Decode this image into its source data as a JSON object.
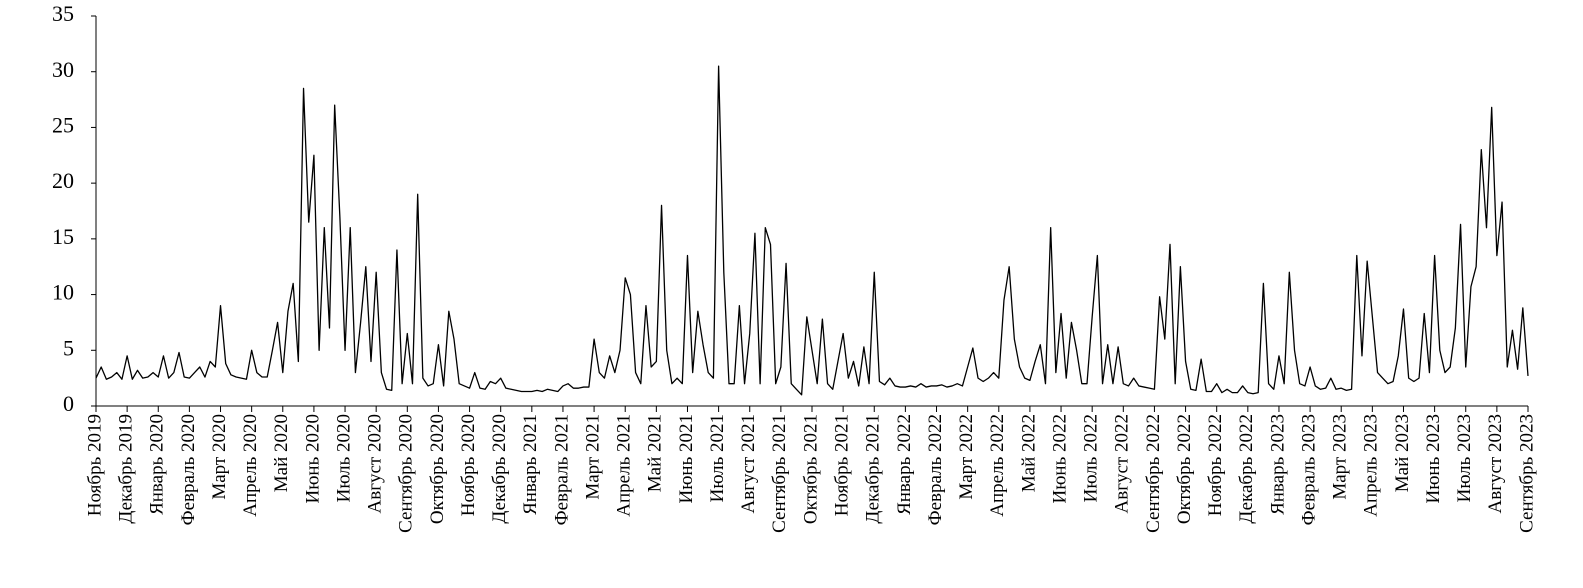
{
  "chart_data": {
    "type": "line",
    "categories": [
      "Ноябрь 2019",
      null,
      null,
      null,
      null,
      null,
      "Декабрь 2019",
      null,
      null,
      null,
      null,
      null,
      "Январь 2020",
      null,
      null,
      null,
      null,
      null,
      "Февраль 2020",
      null,
      null,
      null,
      null,
      null,
      "Март 2020",
      null,
      null,
      null,
      null,
      null,
      "Апрель 2020",
      null,
      null,
      null,
      null,
      null,
      "Май 2020",
      null,
      null,
      null,
      null,
      null,
      "Июнь 2020",
      null,
      null,
      null,
      null,
      null,
      "Июль 2020",
      null,
      null,
      null,
      null,
      null,
      "Август 2020",
      null,
      null,
      null,
      null,
      null,
      "Сентябрь 2020",
      null,
      null,
      null,
      null,
      null,
      "Октябрь 2020",
      null,
      null,
      null,
      null,
      null,
      "Ноябрь 2020",
      null,
      null,
      null,
      null,
      null,
      "Декабрь 2020",
      null,
      null,
      null,
      null,
      null,
      "Январь 2021",
      null,
      null,
      null,
      null,
      null,
      "Февраль 2021",
      null,
      null,
      null,
      null,
      null,
      "Март 2021",
      null,
      null,
      null,
      null,
      null,
      "Апрель 2021",
      null,
      null,
      null,
      null,
      null,
      "Май 2021",
      null,
      null,
      null,
      null,
      null,
      "Июнь 2021",
      null,
      null,
      null,
      null,
      null,
      "Июль 2021",
      null,
      null,
      null,
      null,
      null,
      "Август 2021",
      null,
      null,
      null,
      null,
      null,
      "Сентябрь 2021",
      null,
      null,
      null,
      null,
      null,
      "Октябрь 2021",
      null,
      null,
      null,
      null,
      null,
      "Ноябрь 2021",
      null,
      null,
      null,
      null,
      null,
      "Декабрь 2021",
      null,
      null,
      null,
      null,
      null,
      "Январь 2022",
      null,
      null,
      null,
      null,
      null,
      "Февраль 2022",
      null,
      null,
      null,
      null,
      null,
      "Март 2022",
      null,
      null,
      null,
      null,
      null,
      "Апрель 2022",
      null,
      null,
      null,
      null,
      null,
      "Май 2022",
      null,
      null,
      null,
      null,
      null,
      "Июнь 2022",
      null,
      null,
      null,
      null,
      null,
      "Июль 2022",
      null,
      null,
      null,
      null,
      null,
      "Август 2022",
      null,
      null,
      null,
      null,
      null,
      "Сентябрь 2022",
      null,
      null,
      null,
      null,
      null,
      "Октябрь 2022",
      null,
      null,
      null,
      null,
      null,
      "Ноябрь 2022",
      null,
      null,
      null,
      null,
      null,
      "Декабрь 2022",
      null,
      null,
      null,
      null,
      null,
      "Январь 2023",
      null,
      null,
      null,
      null,
      null,
      "Февраль 2023",
      null,
      null,
      null,
      null,
      null,
      "Март 2023",
      null,
      null,
      null,
      null,
      null,
      "Апрель 2023",
      null,
      null,
      null,
      null,
      null,
      "Май 2023",
      null,
      null,
      null,
      null,
      null,
      "Июнь 2023",
      null,
      null,
      null,
      null,
      null,
      "Июль 2023",
      null,
      null,
      null,
      null,
      null,
      "Август 2023",
      null,
      null,
      null,
      null,
      null,
      "Сентябрь 2023"
    ],
    "values": [
      2.5,
      3.5,
      2.4,
      2.6,
      3.0,
      2.4,
      4.5,
      2.4,
      3.2,
      2.5,
      2.6,
      3.0,
      2.6,
      4.5,
      2.5,
      3.0,
      4.8,
      2.6,
      2.5,
      3.0,
      3.5,
      2.6,
      4.0,
      3.5,
      9.0,
      3.8,
      2.8,
      2.6,
      2.5,
      2.4,
      5.0,
      3.0,
      2.6,
      2.6,
      5.0,
      7.5,
      3.0,
      8.5,
      11,
      4,
      28.5,
      16.5,
      22.5,
      5,
      16,
      7,
      27,
      17,
      5,
      16,
      3,
      7.5,
      12.5,
      4,
      12,
      3,
      1.5,
      1.4,
      14,
      2,
      6.5,
      2,
      19,
      2.5,
      1.8,
      2.0,
      5.5,
      1.8,
      8.5,
      6,
      2,
      1.8,
      1.6,
      3.0,
      1.6,
      1.5,
      2.2,
      2.0,
      2.5,
      1.6,
      1.5,
      1.4,
      1.3,
      1.3,
      1.3,
      1.4,
      1.3,
      1.5,
      1.4,
      1.3,
      1.8,
      2.0,
      1.6,
      1.6,
      1.7,
      1.7,
      6,
      3,
      2.5,
      4.5,
      3,
      5,
      11.5,
      10,
      3,
      2,
      9,
      3.5,
      4,
      18,
      5,
      2,
      2.5,
      2,
      13.5,
      3,
      8.5,
      5.5,
      3,
      2.5,
      30.5,
      12,
      2,
      2,
      9,
      2,
      6.5,
      15.5,
      2,
      16,
      14.5,
      2,
      3.5,
      12.8,
      2,
      1.5,
      1.0,
      8,
      5,
      2,
      7.8,
      2,
      1.5,
      4,
      6.5,
      2.5,
      4,
      1.8,
      5.3,
      2,
      12,
      2.2,
      1.9,
      2.5,
      1.8,
      1.7,
      1.7,
      1.8,
      1.7,
      2.0,
      1.7,
      1.8,
      1.8,
      1.9,
      1.7,
      1.8,
      2.0,
      1.8,
      3.5,
      5.2,
      2.5,
      2.2,
      2.5,
      3,
      2.5,
      9.5,
      12.5,
      6,
      3.5,
      2.5,
      2.3,
      4,
      5.5,
      2,
      16,
      3,
      8.3,
      2.5,
      7.5,
      5,
      2,
      2,
      8,
      13.5,
      2,
      5.5,
      2,
      5.3,
      2,
      1.8,
      2.5,
      1.8,
      1.7,
      1.6,
      1.5,
      9.8,
      6,
      14.5,
      2,
      12.5,
      4,
      1.5,
      1.4,
      4.2,
      1.3,
      1.3,
      2,
      1.2,
      1.5,
      1.2,
      1.2,
      1.8,
      1.2,
      1.1,
      1.2,
      11,
      2,
      1.5,
      4.5,
      2,
      12,
      5,
      2,
      1.8,
      3.5,
      1.8,
      1.5,
      1.6,
      2.5,
      1.5,
      1.6,
      1.4,
      1.5,
      13.5,
      4.5,
      13,
      8,
      3,
      2.5,
      2.0,
      2.2,
      4.5,
      8.7,
      2.5,
      2.2,
      2.5,
      8.3,
      3,
      13.5,
      5,
      3,
      3.5,
      7,
      16.3,
      3.5,
      10.7,
      12.5,
      23,
      16,
      26.8,
      13.5,
      18.3,
      3.5,
      6.8,
      3.3,
      8.8,
      2.7
    ],
    "color": "#000000",
    "ylim": [
      0,
      35
    ],
    "yticks": [
      0,
      5,
      10,
      15,
      20,
      25,
      30,
      35
    ]
  }
}
